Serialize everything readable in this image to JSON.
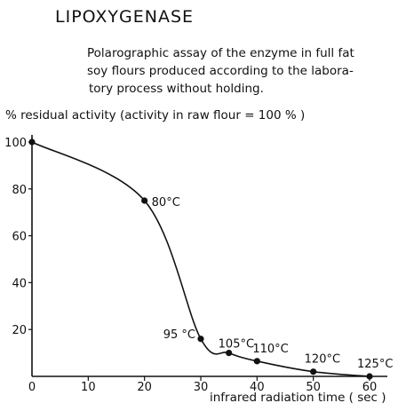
{
  "chart_data": {
    "type": "line",
    "title": "LIPOXYGENASE",
    "subtitle_lines": [
      "Polarographic assay of the enzyme in full fat",
      "soy flours produced according to the labora-",
      "tory process without holding."
    ],
    "ylabel": "% residual activity (activity in raw flour = 100 % )",
    "xlabel": "infrared radiation time ( sec )",
    "xlim": [
      0,
      60
    ],
    "ylim": [
      0,
      100
    ],
    "xticks": [
      "0",
      "10",
      "20",
      "30",
      "40",
      "50",
      "60"
    ],
    "yticks": [
      "20",
      "40",
      "60",
      "80",
      "100"
    ],
    "grid": false,
    "points": [
      {
        "x": 0,
        "y": 100,
        "label": ""
      },
      {
        "x": 20,
        "y": 75,
        "label": "80°C"
      },
      {
        "x": 30,
        "y": 16,
        "label": "95 °C"
      },
      {
        "x": 35,
        "y": 10,
        "label": "105°C"
      },
      {
        "x": 40,
        "y": 6.5,
        "label": "110°C"
      },
      {
        "x": 50,
        "y": 2,
        "label": "120°C"
      },
      {
        "x": 60,
        "y": 0,
        "label": "125°C"
      }
    ],
    "color": "#111111"
  }
}
